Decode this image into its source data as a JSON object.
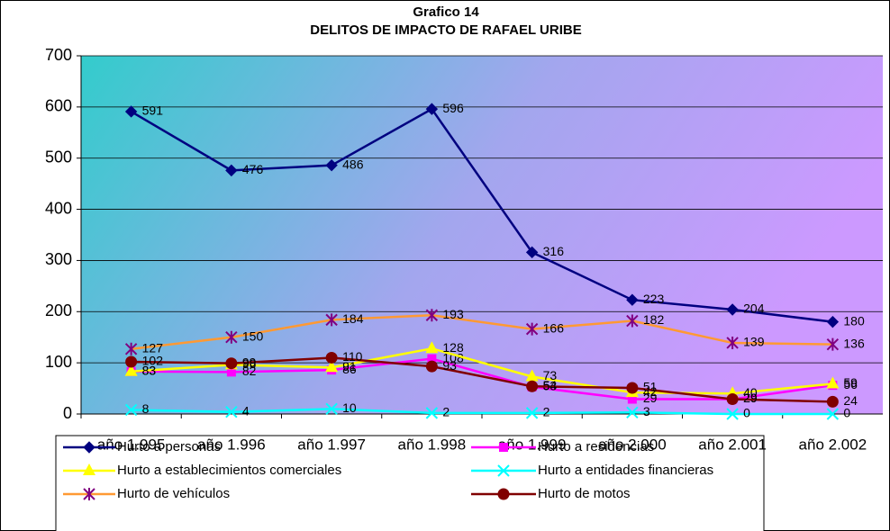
{
  "chart_data": {
    "type": "line",
    "title": "Grafico 14",
    "subtitle": "DELITOS DE IMPACTO DE RAFAEL URIBE",
    "categories": [
      "año 1.995",
      "año 1.996",
      "año 1.997",
      "año 1.998",
      "año 1.999",
      "año 2.000",
      "año 2.001",
      "año 2.002"
    ],
    "ylim": [
      0,
      700
    ],
    "yticks": [
      0,
      100,
      200,
      300,
      400,
      500,
      600,
      700
    ],
    "grid": true,
    "legend": "bottom",
    "series": [
      {
        "name": "Hurto a personas",
        "color": "#000080",
        "marker": "diamond",
        "marker_color": "#000080",
        "values": [
          591,
          476,
          486,
          596,
          316,
          223,
          204,
          180
        ]
      },
      {
        "name": "Hurto a residencias",
        "color": "#ff00ff",
        "marker": "square",
        "marker_color": "#ff00ff",
        "values": [
          83,
          82,
          86,
          108,
          53,
          29,
          29,
          56
        ]
      },
      {
        "name": "Hurto a establecimientos comerciales",
        "color": "#ffff00",
        "marker": "triangle",
        "marker_color": "#ffff00",
        "values": [
          83,
          96,
          91,
          128,
          73,
          42,
          40,
          59
        ]
      },
      {
        "name": "Hurto a entidades financieras",
        "color": "#00ffff",
        "marker": "x",
        "marker_color": "#00ffff",
        "values": [
          8,
          4,
          10,
          2,
          2,
          3,
          0,
          0
        ]
      },
      {
        "name": "Hurto de vehículos",
        "color": "#ff9933",
        "marker": "asterisk",
        "marker_color": "#800080",
        "values": [
          127,
          150,
          184,
          193,
          166,
          182,
          139,
          136
        ]
      },
      {
        "name": "Hurto de motos",
        "color": "#800000",
        "marker": "circle",
        "marker_color": "#800000",
        "values": [
          102,
          99,
          110,
          93,
          54,
          51,
          29,
          24
        ]
      }
    ]
  }
}
